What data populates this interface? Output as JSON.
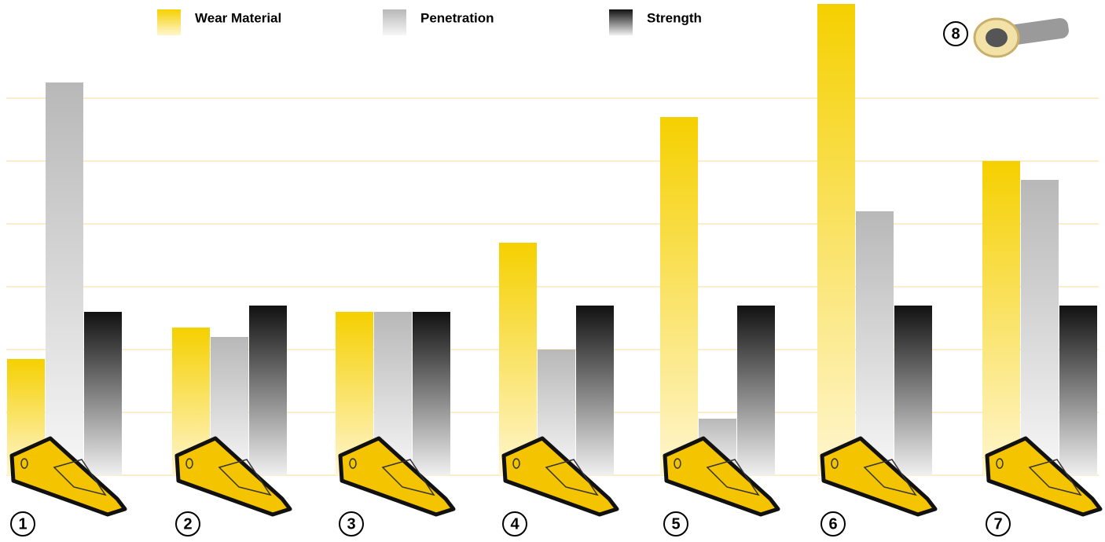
{
  "chart_data": {
    "type": "bar",
    "categories": [
      "1",
      "2",
      "3",
      "4",
      "5",
      "6",
      "7"
    ],
    "series": [
      {
        "name": "Wear Material",
        "color": "#f5d000",
        "values": [
          1.85,
          2.35,
          2.6,
          3.7,
          5.7,
          7.5,
          5.0
        ]
      },
      {
        "name": "Penetration",
        "color": "#b8b8b8",
        "values": [
          6.25,
          2.2,
          2.6,
          2.0,
          0.9,
          4.2,
          4.7
        ]
      },
      {
        "name": "Strength",
        "color": "#111111",
        "values": [
          2.6,
          2.7,
          2.6,
          2.7,
          2.7,
          2.7,
          2.7
        ]
      }
    ],
    "ylim": [
      0,
      7.5
    ],
    "yticks": [
      0,
      1,
      2,
      3,
      4,
      5,
      6
    ],
    "grid": true,
    "annotations": [
      {
        "text": "8"
      }
    ]
  }
}
